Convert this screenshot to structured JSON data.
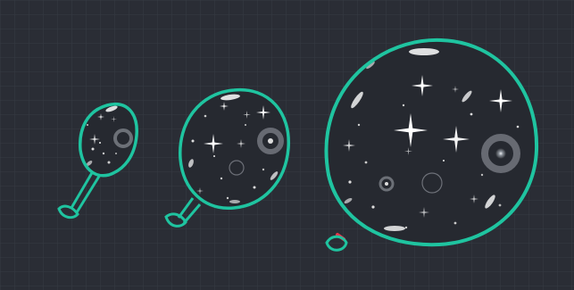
{
  "scene": {
    "background": "#2a2d35",
    "grid_color": "#383c46",
    "outline_color": "#1fc4a0",
    "knot_accent_color": "#e8334a",
    "balloons": [
      {
        "name": "small-balloon",
        "size": "small"
      },
      {
        "name": "medium-balloon",
        "size": "medium"
      },
      {
        "name": "large-balloon",
        "size": "large"
      }
    ]
  }
}
